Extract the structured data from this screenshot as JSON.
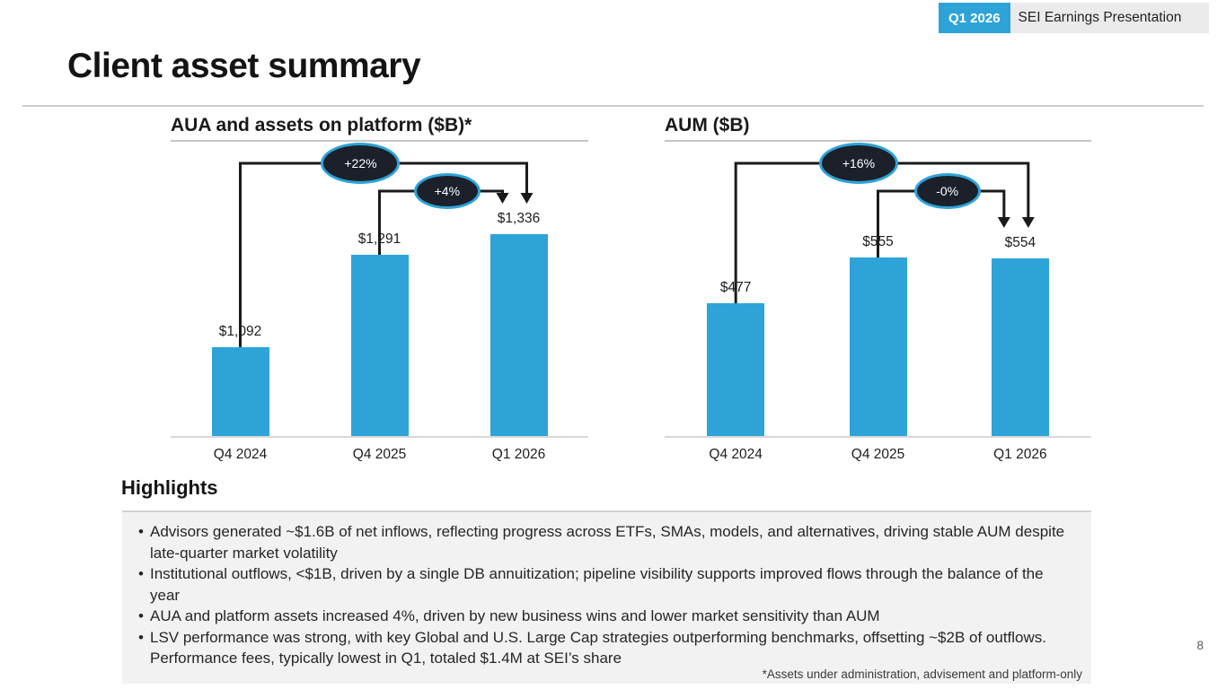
{
  "header": {
    "badge": "Q1 2026",
    "title": "SEI Earnings Presentation"
  },
  "slide": {
    "title": "Client asset summary",
    "page_number": "8",
    "footnote": "*Assets under administration, advisement and platform-only"
  },
  "chart_data": [
    {
      "type": "bar",
      "title": "AUA and assets on platform ($B)*",
      "categories": [
        "Q4 2024",
        "Q4 2025",
        "Q1 2026"
      ],
      "values": [
        1092,
        1291,
        1336
      ],
      "value_labels": [
        "$1,092",
        "$1,291",
        "$1,336"
      ],
      "xlabel": "",
      "ylabel": "",
      "ylim": [
        900,
        1400
      ],
      "grid": false,
      "legend": false,
      "bar_color": "#2EA3D8",
      "annotations": [
        {
          "label": "+22%",
          "from": "Q4 2024",
          "to": "Q1 2026"
        },
        {
          "label": "+4%",
          "from": "Q4 2025",
          "to": "Q1 2026"
        }
      ]
    },
    {
      "type": "bar",
      "title": "AUM ($B)",
      "categories": [
        "Q4 2024",
        "Q4 2025",
        "Q1 2026"
      ],
      "values": [
        477,
        555,
        554
      ],
      "value_labels": [
        "$477",
        "$555",
        "$554"
      ],
      "xlabel": "",
      "ylabel": "",
      "ylim": [
        250,
        600
      ],
      "grid": false,
      "legend": false,
      "bar_color": "#2EA3D8",
      "annotations": [
        {
          "label": "+16%",
          "from": "Q4 2024",
          "to": "Q1 2026"
        },
        {
          "label": "-0%",
          "from": "Q4 2025",
          "to": "Q1 2026"
        }
      ]
    }
  ],
  "highlights": {
    "title": "Highlights",
    "bullets": [
      "Advisors generated ~$1.6B of net inflows, reflecting progress across ETFs, SMAs, models, and alternatives, driving stable AUM despite late-quarter market volatility",
      "Institutional outflows, <$1B, driven by a single DB annuitization; pipeline visibility supports improved flows through the balance of the year",
      "AUA and platform assets increased 4%, driven by new business wins and lower market sensitivity than AUM",
      "LSV performance was strong, with key Global and U.S. Large Cap strategies outperforming benchmarks, offsetting ~$2B of outflows. Performance fees, typically lowest in Q1, totaled $1.4M at SEI’s share"
    ]
  },
  "colors": {
    "accent": "#2EA3D8",
    "annotation_fill": "#1B202B",
    "ink": "#1A1A1A",
    "highlight_bg": "#F2F2F2",
    "header_strip_bg": "#EBEBEB"
  }
}
